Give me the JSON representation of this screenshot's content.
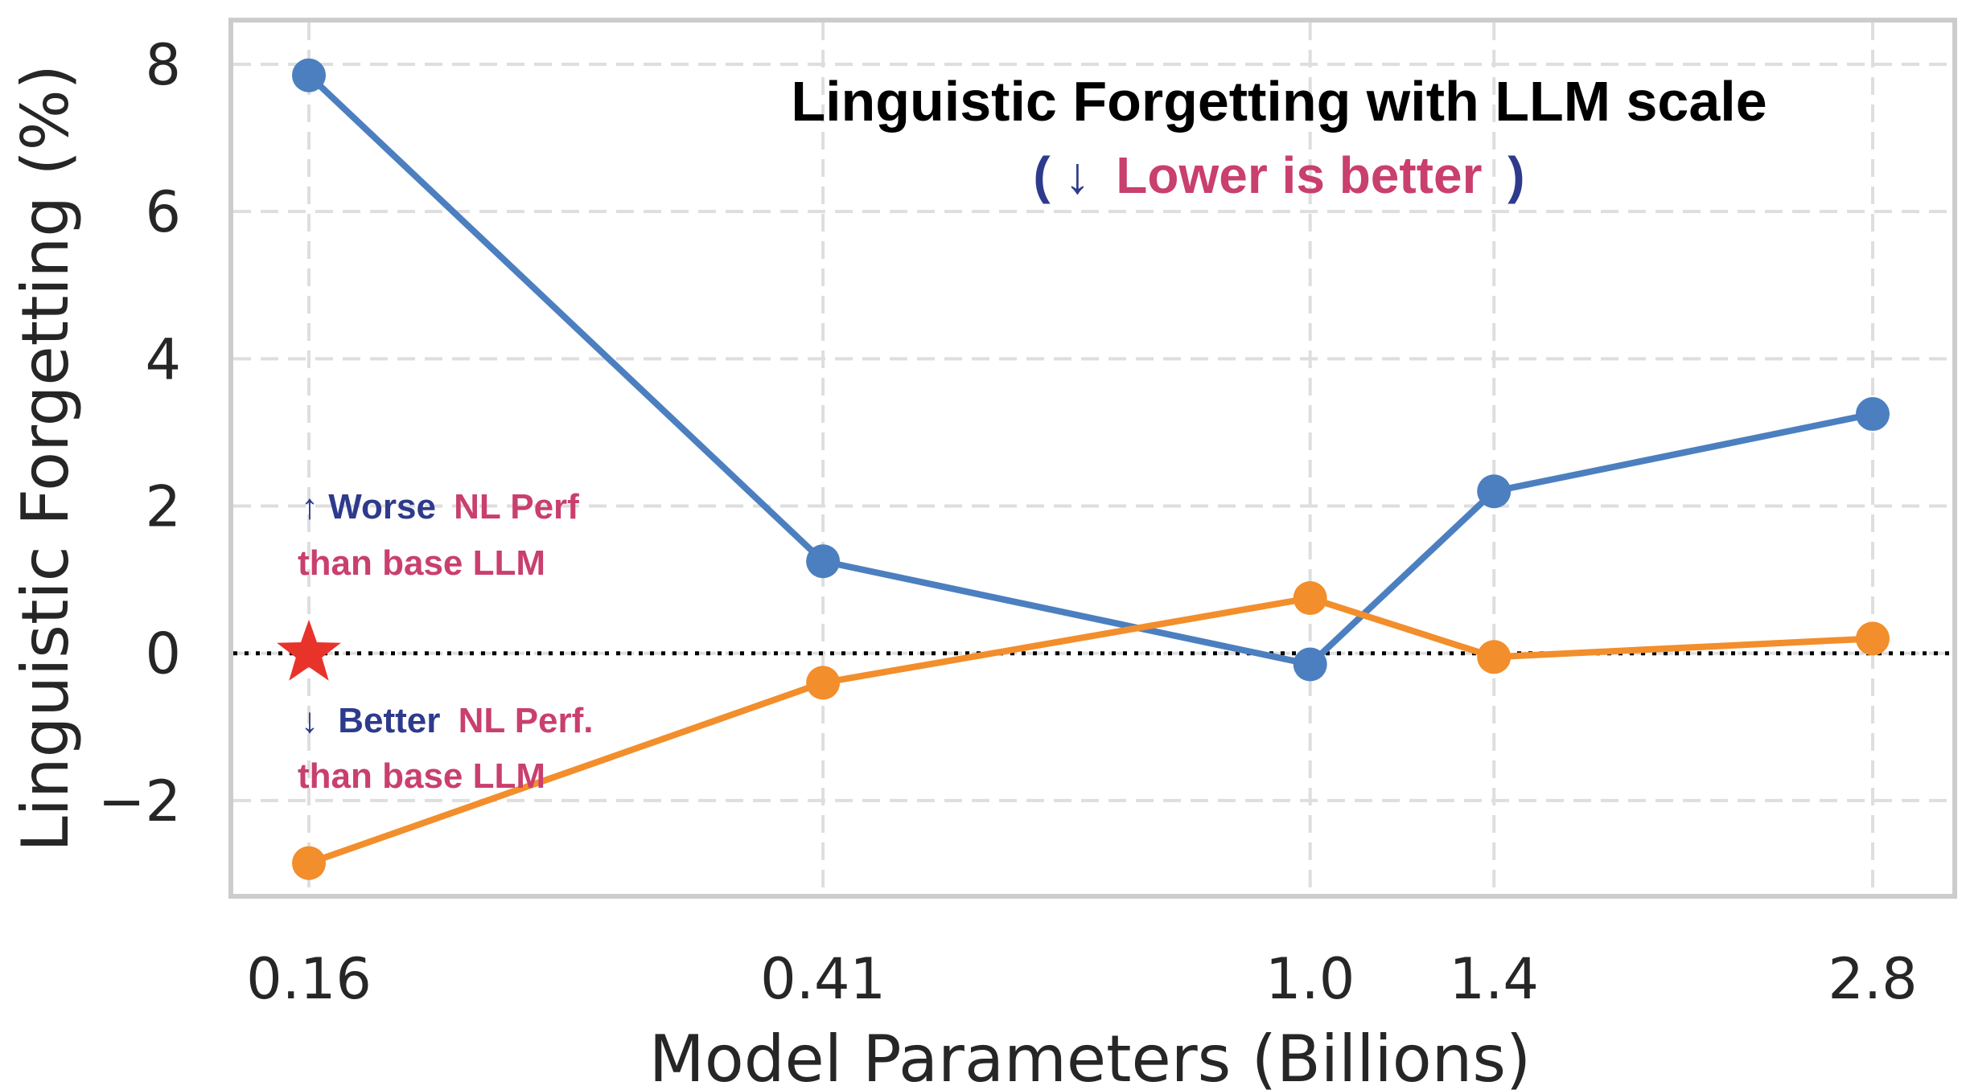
{
  "chart_data": {
    "type": "line",
    "title": "Linguistic Forgetting with LLM scale",
    "subtitle": {
      "open": "(",
      "arrow": "↓",
      "text": "Lower is better",
      "close": ")"
    },
    "xlabel": "Model Parameters (Billions)",
    "ylabel": "Linguistic Forgetting (%)",
    "x_scale": "log",
    "x": [
      0.16,
      0.41,
      1.0,
      1.4,
      2.8
    ],
    "x_tick_labels": [
      "0.16",
      "0.41",
      "1.0",
      "1.4",
      "2.8"
    ],
    "y_ticks": [
      -2,
      0,
      2,
      4,
      6,
      8
    ],
    "y_tick_labels": [
      "−2",
      "0",
      "2",
      "4",
      "6",
      "8"
    ],
    "ylim": [
      -3.3,
      8.6
    ],
    "grid": true,
    "series": [
      {
        "color": "#4c7fbf",
        "values": [
          7.85,
          1.25,
          -0.15,
          2.2,
          3.25
        ]
      },
      {
        "color": "#f28e2b",
        "values": [
          -2.85,
          -0.4,
          0.75,
          -0.05,
          0.2
        ]
      }
    ],
    "reference_line": {
      "y": 0,
      "style": "dotted",
      "color": "#000000"
    },
    "marker": {
      "shape": "star",
      "x": 0.16,
      "y": 0,
      "color": "#e8332a"
    },
    "annotations": {
      "upper": {
        "arrow": "↑",
        "keyword": "Worse",
        "rest": "NL Perf",
        "line2": "than base LLM"
      },
      "lower": {
        "arrow": "↓",
        "keyword": "Better",
        "rest": "NL Perf.",
        "line2": "than base LLM"
      }
    },
    "colors": {
      "accent_blue": "#2e3a8c",
      "accent_pink": "#c93f6e"
    }
  }
}
